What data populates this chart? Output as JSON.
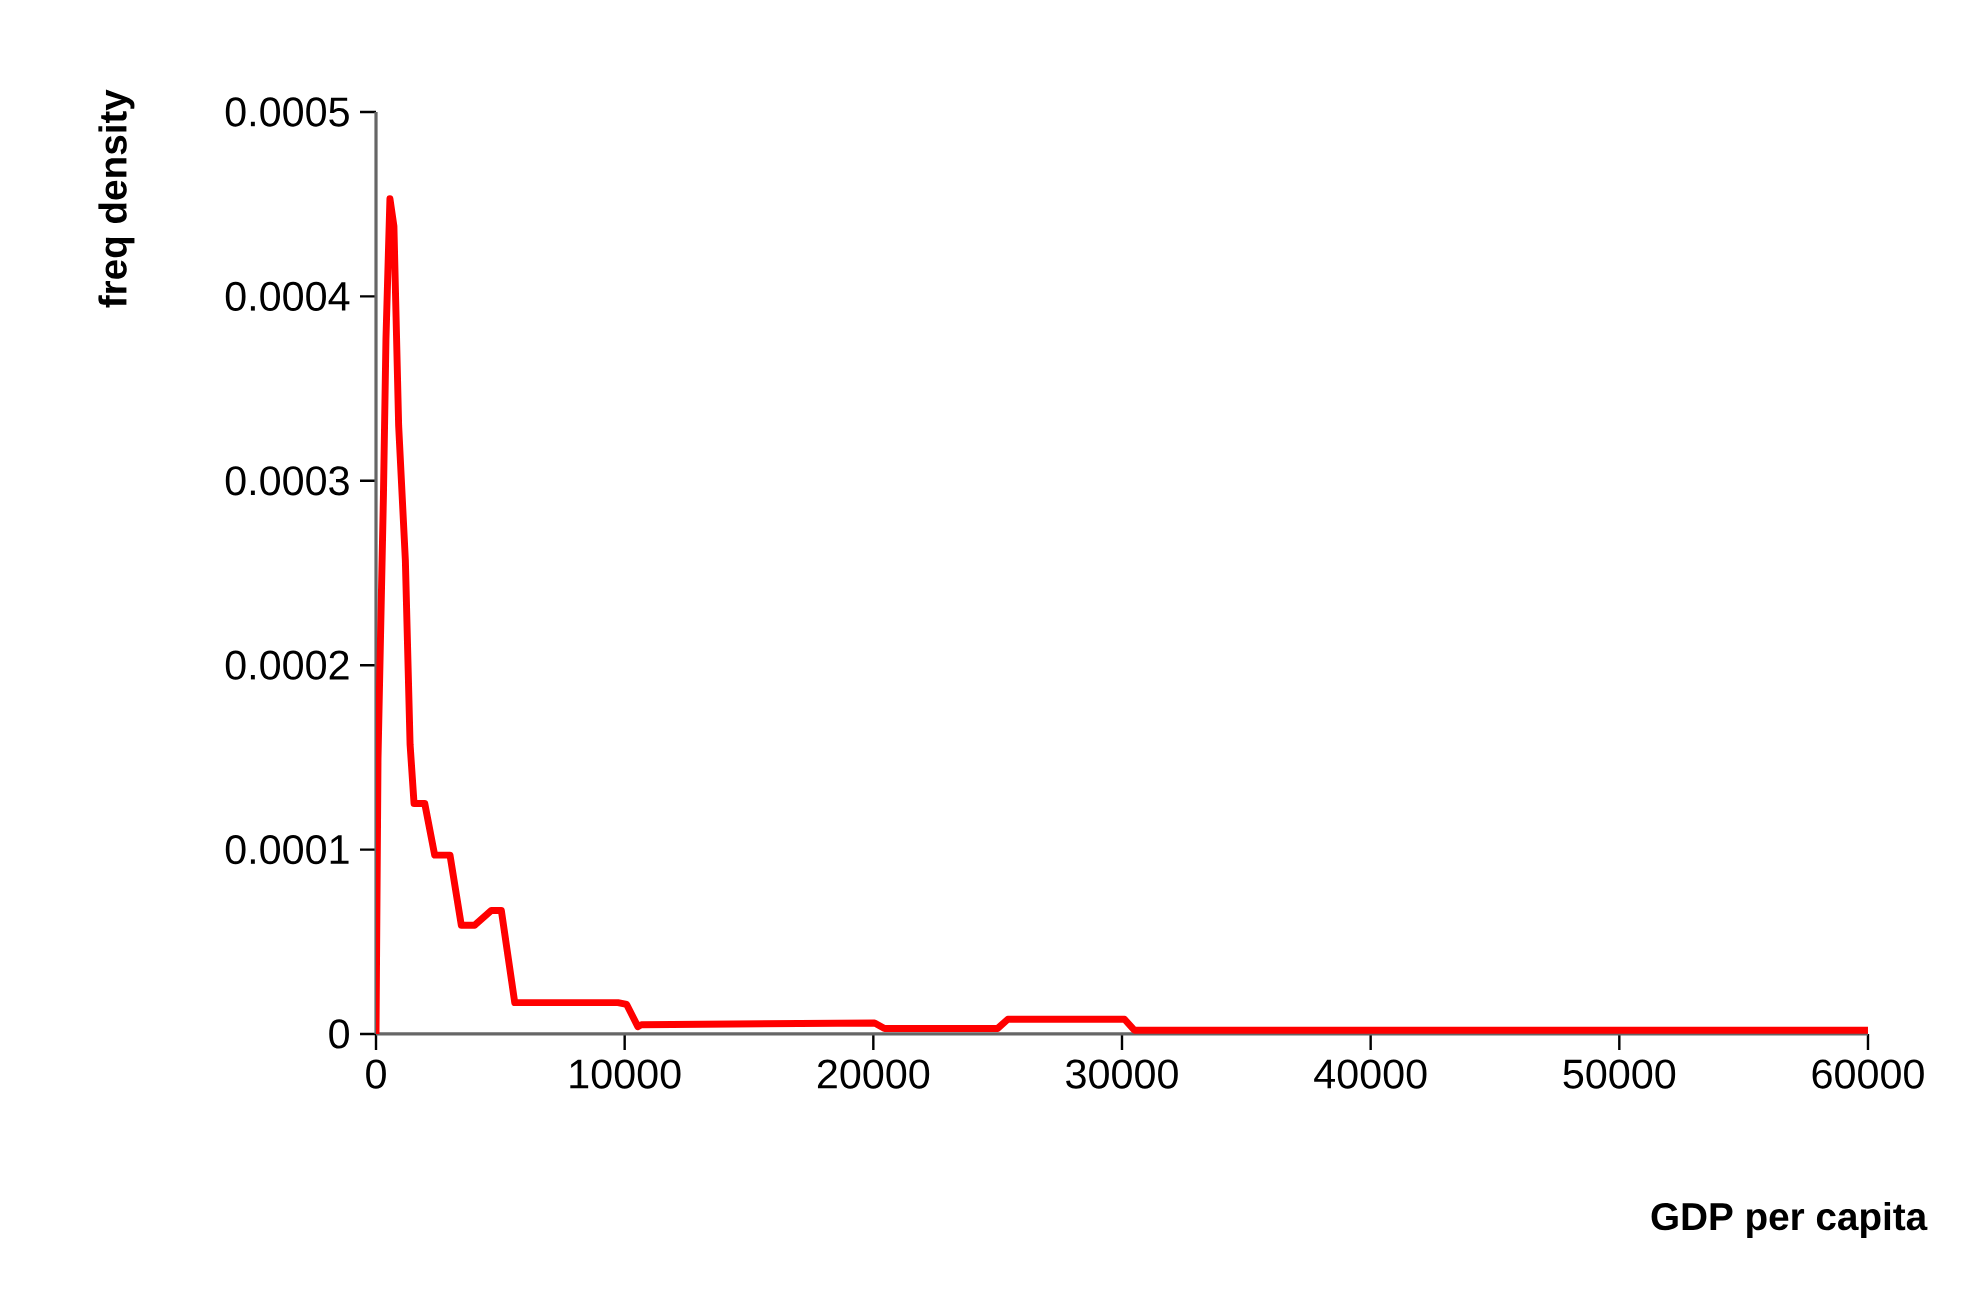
{
  "chart_data": {
    "type": "line",
    "xlabel": "GDP per capita",
    "ylabel": "freq density",
    "xlim": [
      0,
      60000
    ],
    "xticks": [
      0,
      10000,
      20000,
      30000,
      40000,
      50000,
      60000
    ],
    "ylim": [
      0,
      0.0005
    ],
    "yticks": [
      0,
      0.0001,
      0.0002,
      0.0003,
      0.0004,
      0.0005
    ],
    "grid": false,
    "marker": "none",
    "line_style": "solid",
    "series": [
      {
        "color": "#ff0000",
        "x": [
          0,
          80,
          300,
          400,
          560,
          720,
          910,
          1180,
          1370,
          1530,
          1960,
          2360,
          2975,
          3430,
          3970,
          4640,
          5040,
          5580,
          9730,
          10080,
          10530,
          10670,
          20050,
          20450,
          25000,
          25410,
          30100,
          30500,
          60000
        ],
        "values": [
          0,
          0.000149,
          0.000293,
          0.000377,
          0.000453,
          0.000438,
          0.00033,
          0.000257,
          0.000157,
          0.000125,
          0.000125,
          9.7e-05,
          9.7e-05,
          5.9e-05,
          5.9e-05,
          6.7e-05,
          6.7e-05,
          1.7e-05,
          1.7e-05,
          1.6e-05,
          4e-06,
          5e-06,
          6e-06,
          3e-06,
          3e-06,
          8e-06,
          8e-06,
          2e-06,
          2e-06
        ]
      }
    ]
  }
}
